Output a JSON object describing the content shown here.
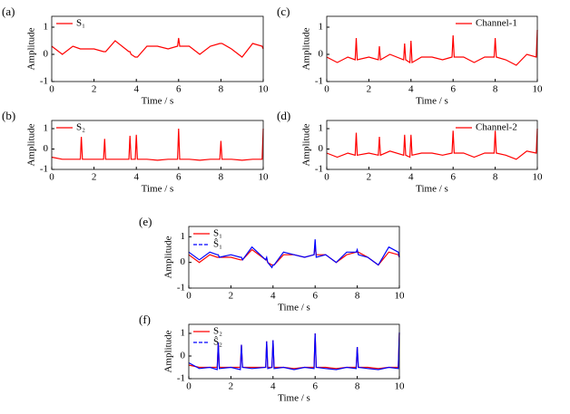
{
  "chart_data": [
    {
      "type": "line",
      "label": "(a)",
      "xlabel": "Time / s",
      "ylabel": "Amplitude",
      "legend": "upper left",
      "x": [
        0,
        0.5,
        1,
        1.35,
        1.4,
        1.45,
        2,
        2.45,
        2.5,
        2.55,
        3,
        3.65,
        3.7,
        3.75,
        3.95,
        4,
        4.05,
        4.5,
        5,
        5.5,
        5.95,
        6,
        6.05,
        6.5,
        7,
        7.5,
        7.95,
        8,
        8.05,
        8.5,
        9,
        9.5,
        9.95,
        10
      ],
      "series": [
        {
          "name": "S₁",
          "color": "#ff0000",
          "values": [
            0.3,
            0.0,
            0.3,
            0.2,
            0.2,
            0.2,
            0.2,
            0.1,
            0.1,
            0.1,
            0.5,
            0.1,
            0.1,
            0.0,
            -0.1,
            -0.1,
            -0.1,
            0.3,
            0.3,
            0.2,
            0.3,
            0.6,
            0.3,
            0.3,
            0.0,
            0.3,
            0.4,
            0.4,
            0.4,
            0.2,
            -0.1,
            0.4,
            0.3,
            0.2
          ]
        }
      ],
      "xlim": [
        0,
        10
      ],
      "ylim": [
        -1,
        1.4
      ],
      "xticks": [
        0,
        2,
        4,
        6,
        8,
        10
      ],
      "yticks": [
        -1,
        0,
        1
      ]
    },
    {
      "type": "line",
      "label": "(b)",
      "xlabel": "Time / s",
      "ylabel": "Amplitude",
      "legend": "upper left",
      "x": [
        0,
        0.5,
        1,
        1.35,
        1.4,
        1.45,
        2,
        2.45,
        2.5,
        2.55,
        3,
        3.65,
        3.7,
        3.75,
        3.95,
        4,
        4.05,
        4.5,
        5,
        5.5,
        5.95,
        6,
        6.05,
        6.5,
        7,
        7.5,
        7.95,
        8,
        8.05,
        8.5,
        9,
        9.5,
        9.95,
        10
      ],
      "series": [
        {
          "name": "S₂",
          "color": "#ff0000",
          "values": [
            -0.4,
            -0.5,
            -0.5,
            -0.5,
            0.6,
            -0.5,
            -0.5,
            -0.5,
            0.5,
            -0.5,
            -0.5,
            -0.5,
            0.65,
            -0.5,
            -0.5,
            0.7,
            -0.5,
            -0.5,
            -0.55,
            -0.5,
            -0.5,
            1.0,
            -0.5,
            -0.5,
            -0.55,
            -0.5,
            -0.5,
            0.4,
            -0.5,
            -0.5,
            -0.55,
            -0.5,
            -0.5,
            1.0
          ]
        }
      ],
      "xlim": [
        0,
        10
      ],
      "ylim": [
        -1,
        1.4
      ],
      "xticks": [
        0,
        2,
        4,
        6,
        8,
        10
      ],
      "yticks": [
        -1,
        0,
        1
      ]
    },
    {
      "type": "line",
      "label": "(c)",
      "xlabel": "Time / s",
      "ylabel": "Amplitude",
      "legend": "upper right",
      "x": [
        0,
        0.5,
        1,
        1.35,
        1.4,
        1.45,
        2,
        2.45,
        2.5,
        2.55,
        3,
        3.65,
        3.7,
        3.75,
        3.95,
        4,
        4.05,
        4.5,
        5,
        5.5,
        5.95,
        6,
        6.05,
        6.5,
        7,
        7.5,
        7.95,
        8,
        8.05,
        8.5,
        9,
        9.5,
        9.95,
        10
      ],
      "series": [
        {
          "name": "Channel-1",
          "color": "#ff0000",
          "values": [
            -0.1,
            -0.3,
            -0.1,
            -0.2,
            0.6,
            -0.2,
            -0.1,
            -0.2,
            0.3,
            -0.2,
            0.0,
            -0.2,
            0.4,
            -0.2,
            -0.3,
            0.5,
            -0.3,
            -0.1,
            -0.1,
            -0.2,
            -0.1,
            0.7,
            -0.1,
            -0.1,
            -0.3,
            -0.1,
            -0.1,
            0.6,
            -0.1,
            -0.2,
            -0.4,
            0.0,
            -0.1,
            0.9
          ]
        }
      ],
      "xlim": [
        0,
        10
      ],
      "ylim": [
        -1,
        1.4
      ],
      "xticks": [
        0,
        2,
        4,
        6,
        8,
        10
      ],
      "yticks": [
        -1,
        0,
        1
      ]
    },
    {
      "type": "line",
      "label": "(d)",
      "xlabel": "Time / s",
      "ylabel": "Amplitude",
      "legend": "upper right",
      "x": [
        0,
        0.5,
        1,
        1.35,
        1.4,
        1.45,
        2,
        2.45,
        2.5,
        2.55,
        3,
        3.65,
        3.7,
        3.75,
        3.95,
        4,
        4.05,
        4.5,
        5,
        5.5,
        5.95,
        6,
        6.05,
        6.5,
        7,
        7.5,
        7.95,
        8,
        8.05,
        8.5,
        9,
        9.5,
        9.95,
        10
      ],
      "series": [
        {
          "name": "Channel-2",
          "color": "#ff0000",
          "values": [
            -0.2,
            -0.4,
            -0.2,
            -0.3,
            0.8,
            -0.3,
            -0.2,
            -0.3,
            0.6,
            -0.3,
            -0.1,
            -0.3,
            0.7,
            -0.3,
            -0.4,
            0.7,
            -0.3,
            -0.2,
            -0.2,
            -0.3,
            -0.2,
            0.9,
            -0.2,
            -0.2,
            -0.4,
            -0.2,
            -0.2,
            0.9,
            -0.2,
            -0.3,
            -0.5,
            -0.1,
            -0.2,
            1.0
          ]
        }
      ],
      "xlim": [
        0,
        10
      ],
      "ylim": [
        -1,
        1.4
      ],
      "xticks": [
        0,
        2,
        4,
        6,
        8,
        10
      ],
      "yticks": [
        -1,
        0,
        1
      ]
    },
    {
      "type": "line",
      "label": "(e)",
      "xlabel": "Time / s",
      "ylabel": "Amplitude",
      "legend": "upper left",
      "x": [
        0,
        0.5,
        1,
        1.35,
        1.4,
        1.45,
        2,
        2.45,
        2.5,
        2.55,
        3,
        3.65,
        3.7,
        3.75,
        3.95,
        4,
        4.05,
        4.5,
        5,
        5.5,
        5.95,
        6,
        6.05,
        6.5,
        7,
        7.5,
        7.95,
        8,
        8.05,
        8.5,
        9,
        9.5,
        9.95,
        10
      ],
      "series": [
        {
          "name": "S₁",
          "color": "#ff0000",
          "values": [
            0.3,
            0.0,
            0.3,
            0.2,
            0.2,
            0.2,
            0.2,
            0.1,
            0.1,
            0.1,
            0.5,
            0.1,
            0.1,
            0.0,
            -0.1,
            -0.1,
            -0.1,
            0.3,
            0.3,
            0.2,
            0.3,
            0.6,
            0.3,
            0.3,
            0.0,
            0.3,
            0.4,
            0.4,
            0.4,
            0.2,
            -0.1,
            0.4,
            0.3,
            0.2
          ]
        },
        {
          "name": "Ŝ₁",
          "color": "#0000ff",
          "values": [
            0.4,
            0.1,
            0.4,
            0.3,
            0.3,
            0.2,
            0.3,
            0.2,
            0.2,
            0.1,
            0.6,
            0.1,
            0.2,
            0.0,
            -0.2,
            -0.1,
            -0.1,
            0.4,
            0.3,
            0.2,
            0.3,
            0.9,
            0.2,
            0.3,
            0.0,
            0.4,
            0.4,
            0.5,
            0.3,
            0.2,
            -0.1,
            0.6,
            0.4,
            0.2
          ]
        }
      ],
      "xlim": [
        0,
        10
      ],
      "ylim": [
        -1,
        1.4
      ],
      "xticks": [
        0,
        2,
        4,
        6,
        8,
        10
      ],
      "yticks": [
        -1,
        0,
        1
      ]
    },
    {
      "type": "line",
      "label": "(f)",
      "xlabel": "Time / s",
      "ylabel": "Amplitude",
      "legend": "upper left",
      "x": [
        0,
        0.5,
        1,
        1.35,
        1.4,
        1.45,
        2,
        2.45,
        2.5,
        2.55,
        3,
        3.65,
        3.7,
        3.75,
        3.95,
        4,
        4.05,
        4.5,
        5,
        5.5,
        5.95,
        6,
        6.05,
        6.5,
        7,
        7.5,
        7.95,
        8,
        8.05,
        8.5,
        9,
        9.5,
        9.95,
        10
      ],
      "series": [
        {
          "name": "S₂",
          "color": "#ff0000",
          "values": [
            -0.4,
            -0.5,
            -0.5,
            -0.5,
            0.6,
            -0.5,
            -0.5,
            -0.5,
            0.5,
            -0.5,
            -0.5,
            -0.5,
            0.65,
            -0.5,
            -0.5,
            0.7,
            -0.5,
            -0.5,
            -0.55,
            -0.5,
            -0.5,
            1.0,
            -0.5,
            -0.5,
            -0.55,
            -0.5,
            -0.5,
            0.4,
            -0.5,
            -0.5,
            -0.55,
            -0.5,
            -0.5,
            1.0
          ]
        },
        {
          "name": "Ŝ₂",
          "color": "#0000ff",
          "values": [
            -0.3,
            -0.55,
            -0.5,
            -0.6,
            0.6,
            -0.55,
            -0.5,
            -0.6,
            0.5,
            -0.5,
            -0.55,
            -0.5,
            0.65,
            -0.55,
            -0.5,
            0.7,
            -0.55,
            -0.5,
            -0.6,
            -0.5,
            -0.55,
            1.0,
            -0.5,
            -0.55,
            -0.6,
            -0.5,
            -0.55,
            0.4,
            -0.5,
            -0.55,
            -0.6,
            -0.5,
            -0.55,
            1.05
          ]
        }
      ],
      "xlim": [
        0,
        10
      ],
      "ylim": [
        -1,
        1.4
      ],
      "xticks": [
        0,
        2,
        4,
        6,
        8,
        10
      ],
      "yticks": [
        -1,
        0,
        1
      ]
    }
  ]
}
